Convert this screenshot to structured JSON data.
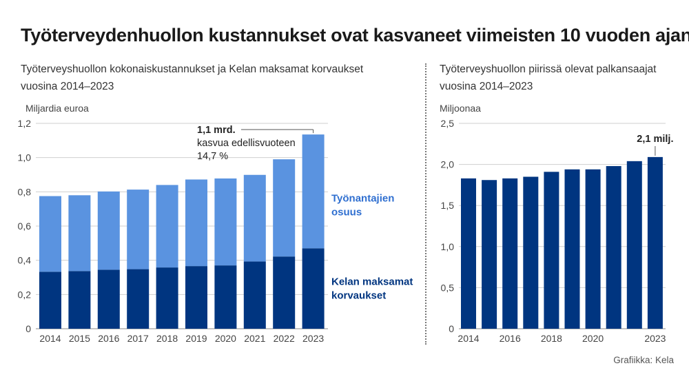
{
  "title": "Työterveydenhuollon kustannukset ovat kasvaneet viimeisten 10 vuoden ajan",
  "credit": "Grafiikka: Kela",
  "chart_data": [
    {
      "type": "bar",
      "stacked": true,
      "subtitle": "Työterveyshuollon kokonaiskustannukset ja Kelan maksamat korvaukset vuosina 2014–2023",
      "unit_label": "Miljardia euroa",
      "categories": [
        "2014",
        "2015",
        "2016",
        "2017",
        "2018",
        "2019",
        "2020",
        "2021",
        "2022",
        "2023"
      ],
      "ylim": [
        0,
        1.2
      ],
      "yticks": [
        0,
        0.2,
        0.4,
        0.6,
        0.8,
        1.0,
        1.2
      ],
      "ytick_labels": [
        "0",
        "0,2",
        "0,4",
        "0,6",
        "0,8",
        "1,0",
        "1,2"
      ],
      "grid": true,
      "series": [
        {
          "name": "Kelan maksamat korvaukset",
          "label_lines": [
            "Kelan maksamat",
            "korvaukset"
          ],
          "color": "#003580",
          "label_color": "#003580",
          "values": [
            0.333,
            0.337,
            0.345,
            0.348,
            0.358,
            0.366,
            0.37,
            0.393,
            0.422,
            0.47
          ]
        },
        {
          "name": "Työnantajien osuus",
          "label_lines": [
            "Työnantajien",
            "osuus"
          ],
          "color": "#5a93e0",
          "label_color": "#2f6fd0",
          "values": [
            0.442,
            0.443,
            0.457,
            0.465,
            0.482,
            0.506,
            0.508,
            0.506,
            0.568,
            0.665
          ]
        }
      ],
      "annotation": {
        "category": "2023",
        "lines": [
          "1,1 mrd.",
          "kasvua edellisvuoteen",
          "14,7 %"
        ]
      }
    },
    {
      "type": "bar",
      "subtitle": "Työterveyshuollon piirissä olevat palkansaajat vuosina 2014–2023",
      "unit_label": "Miljoonaa",
      "categories": [
        "2014",
        "2015",
        "2016",
        "2017",
        "2018",
        "2019",
        "2020",
        "2021",
        "2022",
        "2023"
      ],
      "xtick_labels": [
        "2014",
        "",
        "2016",
        "",
        "2018",
        "",
        "2020",
        "",
        "",
        "2023"
      ],
      "ylim": [
        0,
        2.5
      ],
      "yticks": [
        0,
        0.5,
        1.0,
        1.5,
        2.0,
        2.5
      ],
      "ytick_labels": [
        "0",
        "0,5",
        "1,0",
        "1,5",
        "2,0",
        "2,5"
      ],
      "grid": true,
      "series": [
        {
          "color": "#003580",
          "values": [
            1.83,
            1.81,
            1.83,
            1.85,
            1.91,
            1.94,
            1.94,
            1.98,
            2.04,
            2.09
          ]
        }
      ],
      "annotation": {
        "category": "2023",
        "lines": [
          "2,1 milj."
        ]
      }
    }
  ]
}
